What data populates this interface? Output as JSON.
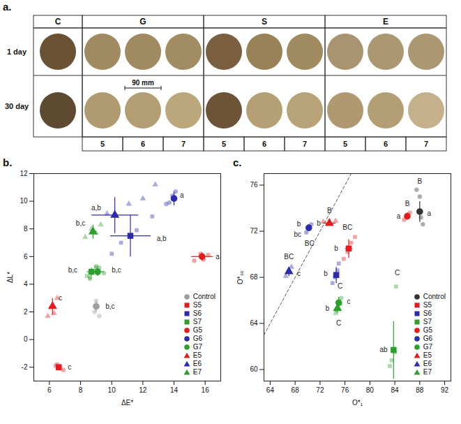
{
  "panel_a": {
    "label": "a.",
    "rows": [
      "1 day",
      "30 day"
    ],
    "scale_label": "90 mm",
    "groups": [
      {
        "name": "C",
        "columns": [
          {
            "label": null,
            "colors": [
              "#6b5234",
              "#5e4a30"
            ]
          }
        ]
      },
      {
        "name": "G",
        "columns": [
          {
            "label": "5",
            "colors": [
              "#a08a62",
              "#b09a70"
            ]
          },
          {
            "label": "6",
            "colors": [
              "#a08a62",
              "#b39d72"
            ]
          },
          {
            "label": "7",
            "colors": [
              "#a28c64",
              "#bca67c"
            ]
          }
        ]
      },
      {
        "name": "S",
        "columns": [
          {
            "label": "5",
            "colors": [
              "#7a6040",
              "#6e5436"
            ]
          },
          {
            "label": "6",
            "colors": [
              "#9a8258",
              "#b59f74"
            ]
          },
          {
            "label": "7",
            "colors": [
              "#a08a60",
              "#b8a277"
            ]
          }
        ]
      },
      {
        "name": "E",
        "columns": [
          {
            "label": "5",
            "colors": [
              "#a89470",
              "#b09870"
            ]
          },
          {
            "label": "6",
            "colors": [
              "#ab9772",
              "#b39e76"
            ]
          },
          {
            "label": "7",
            "colors": [
              "#ab9772",
              "#c4b08a"
            ]
          }
        ]
      }
    ]
  },
  "chart_data": [
    {
      "type": "scatter",
      "title": "b.",
      "x_label": "ΔE*",
      "y_label": "ΔL*",
      "xlim": [
        5,
        17
      ],
      "ylim": [
        -3,
        12
      ],
      "xticks": [
        6,
        8,
        10,
        12,
        14,
        16
      ],
      "yticks": [
        -2,
        0,
        2,
        4,
        6,
        8,
        10,
        12
      ],
      "legend": "lower right",
      "series": [
        {
          "name": "Control",
          "color": "#9e9e9e",
          "marker": "circle",
          "x": 9.0,
          "y": 2.4,
          "x_err": 0.2,
          "y_err": 0.4,
          "points": {
            "x": [
              8.9,
              9.1,
              9.0,
              9.2
            ],
            "y": [
              2.0,
              2.4,
              2.8,
              1.7
            ]
          }
        },
        {
          "name": "S5",
          "color": "#e41a1c",
          "marker": "square",
          "x": 6.6,
          "y": -2.0,
          "x_err": 0.2,
          "y_err": 0.15,
          "points": {
            "x": [
              6.4,
              6.6,
              6.9,
              6.5
            ],
            "y": [
              -1.9,
              -2.1,
              -2.2,
              -1.8
            ]
          }
        },
        {
          "name": "S6",
          "color": "#2b2bb0",
          "marker": "square",
          "x": 11.2,
          "y": 7.5,
          "x_err": 1.3,
          "y_err": 1.5,
          "points": {
            "x": [
              10.0,
              10.6,
              11.6,
              12.6
            ],
            "y": [
              6.2,
              7.0,
              7.9,
              8.9
            ]
          }
        },
        {
          "name": "S7",
          "color": "#2ca02c",
          "marker": "square",
          "x": 8.7,
          "y": 4.9,
          "x_err": 0.3,
          "y_err": 0.3,
          "points": {
            "x": [
              8.4,
              8.7,
              9.0,
              8.6
            ],
            "y": [
              4.6,
              4.9,
              5.2,
              4.4
            ]
          }
        },
        {
          "name": "G5",
          "color": "#e41a1c",
          "marker": "circle",
          "x": 15.8,
          "y": 6.0,
          "x_err": 0.7,
          "y_err": 0.3,
          "points": {
            "x": [
              15.3,
              15.7,
              16.2,
              15.9
            ],
            "y": [
              5.7,
              6.2,
              6.1,
              5.8
            ]
          }
        },
        {
          "name": "G6",
          "color": "#2b2bb0",
          "marker": "circle",
          "x": 14.0,
          "y": 10.2,
          "x_err": 0.2,
          "y_err": 0.5,
          "points": {
            "x": [
              13.5,
              13.9,
              14.1,
              13.7
            ],
            "y": [
              9.8,
              10.4,
              10.7,
              9.9
            ]
          }
        },
        {
          "name": "G7",
          "color": "#2ca02c",
          "marker": "circle",
          "x": 9.1,
          "y": 4.9,
          "x_err": 0.4,
          "y_err": 0.3,
          "points": {
            "x": [
              8.6,
              9.2,
              9.5,
              9.0
            ],
            "y": [
              4.5,
              5.2,
              4.8,
              5.3
            ]
          }
        },
        {
          "name": "E5",
          "color": "#e41a1c",
          "marker": "triangle",
          "x": 6.2,
          "y": 2.4,
          "x_err": 0.2,
          "y_err": 0.6,
          "points": {
            "x": [
              5.9,
              6.2,
              6.5,
              6.3
            ],
            "y": [
              1.7,
              2.4,
              3.0,
              1.9
            ]
          }
        },
        {
          "name": "E6",
          "color": "#2b2bb0",
          "marker": "triangle",
          "x": 10.2,
          "y": 9.0,
          "x_err": 1.5,
          "y_err": 1.3,
          "points": {
            "x": [
              9.7,
              11.1,
              12.0,
              12.8
            ],
            "y": [
              9.1,
              9.8,
              10.2,
              11.2
            ]
          }
        },
        {
          "name": "E7",
          "color": "#2ca02c",
          "marker": "triangle",
          "x": 8.8,
          "y": 7.8,
          "x_err": 0.2,
          "y_err": 0.5,
          "points": {
            "x": [
              8.3,
              8.7,
              9.0,
              9.3
            ],
            "y": [
              7.4,
              8.0,
              7.7,
              8.3
            ]
          }
        }
      ],
      "annotations": [
        {
          "text": "a",
          "x": 16.8,
          "y": 6.0
        },
        {
          "text": "a",
          "x": 14.5,
          "y": 10.4
        },
        {
          "text": "a,b",
          "x": 13.2,
          "y": 7.3
        },
        {
          "text": "a,b",
          "x": 9.0,
          "y": 9.5
        },
        {
          "text": "b,c",
          "x": 8.0,
          "y": 8.4
        },
        {
          "text": "b,c",
          "x": 7.5,
          "y": 5.0
        },
        {
          "text": "b,c",
          "x": 10.3,
          "y": 5.0
        },
        {
          "text": "c",
          "x": 6.7,
          "y": 3.0
        },
        {
          "text": "c",
          "x": 7.3,
          "y": -2.0
        },
        {
          "text": "b,c",
          "x": 9.9,
          "y": 2.4
        }
      ]
    },
    {
      "type": "scatter",
      "title": "c.",
      "x_label": "O*₁",
      "y_label": "O*₃₀",
      "xlim": [
        63,
        93
      ],
      "ylim": [
        59,
        77
      ],
      "xticks": [
        64,
        68,
        72,
        76,
        80,
        84,
        88,
        92
      ],
      "yticks": [
        60,
        64,
        68,
        72,
        76
      ],
      "legend": "lower right",
      "reference_line": {
        "x": [
          63,
          77
        ],
        "y": [
          63,
          77
        ],
        "line_style": "dashed"
      },
      "series": [
        {
          "name": "Control",
          "color": "#333333",
          "marker": "circle",
          "x": 88.0,
          "y": 73.7,
          "x_err": 0.3,
          "y_err": 0.9,
          "points": {
            "x": [
              87.5,
              88.0,
              88.5,
              88.2
            ],
            "y": [
              75.6,
              75.0,
              72.6,
              73.2
            ]
          }
        },
        {
          "name": "S5",
          "color": "#e41a1c",
          "marker": "square",
          "x": 76.6,
          "y": 70.5,
          "x_err": 0.6,
          "y_err": 0.8,
          "points": {
            "x": [
              75.8,
              76.4,
              77.0,
              77.6
            ],
            "y": [
              69.6,
              70.2,
              71.0,
              71.5
            ]
          }
        },
        {
          "name": "S6",
          "color": "#2b2bb0",
          "marker": "square",
          "x": 74.6,
          "y": 68.2,
          "x_err": 0.3,
          "y_err": 0.7,
          "points": {
            "x": [
              74.0,
              74.4,
              74.8,
              75.0
            ],
            "y": [
              67.5,
              68.0,
              68.6,
              69.2
            ]
          }
        },
        {
          "name": "S7",
          "color": "#2ca02c",
          "marker": "square",
          "x": 83.8,
          "y": 61.7,
          "x_err": 0.3,
          "y_err": 2.5,
          "points": {
            "x": [
              83.2,
              83.5,
              84.0,
              84.2
            ],
            "y": [
              60.3,
              60.8,
              61.5,
              67.2
            ]
          }
        },
        {
          "name": "G5",
          "color": "#e41a1c",
          "marker": "circle",
          "x": 86.0,
          "y": 73.3,
          "x_err": 0.3,
          "y_err": 0.3,
          "points": {
            "x": [
              85.5,
              86.0,
              86.4
            ],
            "y": [
              73.0,
              73.4,
              73.6
            ]
          }
        },
        {
          "name": "G6",
          "color": "#2b2bb0",
          "marker": "circle",
          "x": 70.2,
          "y": 72.3,
          "x_err": 0.3,
          "y_err": 0.3,
          "points": {
            "x": [
              69.8,
              70.2,
              70.6
            ],
            "y": [
              71.9,
              72.3,
              72.6
            ]
          }
        },
        {
          "name": "G7",
          "color": "#2ca02c",
          "marker": "circle",
          "x": 75.0,
          "y": 65.8,
          "x_err": 0.3,
          "y_err": 0.5,
          "points": {
            "x": [
              74.6,
              75.0,
              75.4
            ],
            "y": [
              65.2,
              65.8,
              66.2
            ]
          }
        },
        {
          "name": "E5",
          "color": "#e41a1c",
          "marker": "triangle",
          "x": 73.5,
          "y": 72.7,
          "x_err": 1.0,
          "y_err": 0.2,
          "points": {
            "x": [
              72.5,
              73.5,
              74.5
            ],
            "y": [
              72.8,
              72.6,
              72.9
            ]
          }
        },
        {
          "name": "E6",
          "color": "#2b2bb0",
          "marker": "triangle",
          "x": 67.0,
          "y": 68.5,
          "x_err": 0.3,
          "y_err": 0.4,
          "points": {
            "x": [
              66.5,
              67.0,
              67.4
            ],
            "y": [
              68.1,
              68.5,
              68.9
            ]
          }
        },
        {
          "name": "E7",
          "color": "#2ca02c",
          "marker": "triangle",
          "x": 74.8,
          "y": 65.3,
          "x_err": 0.2,
          "y_err": 0.4,
          "points": {
            "x": [
              74.5,
              74.8,
              75.2
            ],
            "y": [
              64.9,
              65.3,
              65.7
            ]
          }
        }
      ],
      "annotations": [
        {
          "text": "B",
          "x": 88.0,
          "y": 76.3
        },
        {
          "text": "a",
          "x": 89.5,
          "y": 73.5
        },
        {
          "text": "B",
          "x": 86.0,
          "y": 74.4
        },
        {
          "text": "a",
          "x": 84.6,
          "y": 73.3
        },
        {
          "text": "B",
          "x": 73.5,
          "y": 73.8
        },
        {
          "text": "b",
          "x": 71.8,
          "y": 72.7
        },
        {
          "text": "BC",
          "x": 76.4,
          "y": 72.3
        },
        {
          "text": "b",
          "x": 74.6,
          "y": 70.5
        },
        {
          "text": "b",
          "x": 68.6,
          "y": 72.6
        },
        {
          "text": "bc",
          "x": 68.4,
          "y": 71.7
        },
        {
          "text": "BC",
          "x": 70.3,
          "y": 70.9
        },
        {
          "text": "BC",
          "x": 67.0,
          "y": 69.8
        },
        {
          "text": "c",
          "x": 68.6,
          "y": 68.3
        },
        {
          "text": "b",
          "x": 72.9,
          "y": 68.3
        },
        {
          "text": "C",
          "x": 75.2,
          "y": 67.2
        },
        {
          "text": "c",
          "x": 76.6,
          "y": 65.9
        },
        {
          "text": "b",
          "x": 73.2,
          "y": 65.3
        },
        {
          "text": "C",
          "x": 75.0,
          "y": 64.0
        },
        {
          "text": "C",
          "x": 84.4,
          "y": 68.4
        },
        {
          "text": "ab",
          "x": 82.2,
          "y": 61.7
        }
      ]
    }
  ]
}
